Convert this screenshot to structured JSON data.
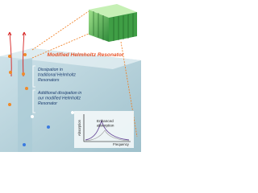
{
  "title": "Modified Helmholtz Resonator",
  "traditional": [
    "Dissipation in",
    "traditional Helmholtz",
    "Resonators"
  ],
  "modified": [
    "Additional dissipation in",
    "our modified Helmholtz",
    "Resonator"
  ],
  "plot": {
    "annotation": [
      "Enhanced",
      "absorption"
    ],
    "y_label": "Absorption",
    "x_label": "Frequency"
  }
}
